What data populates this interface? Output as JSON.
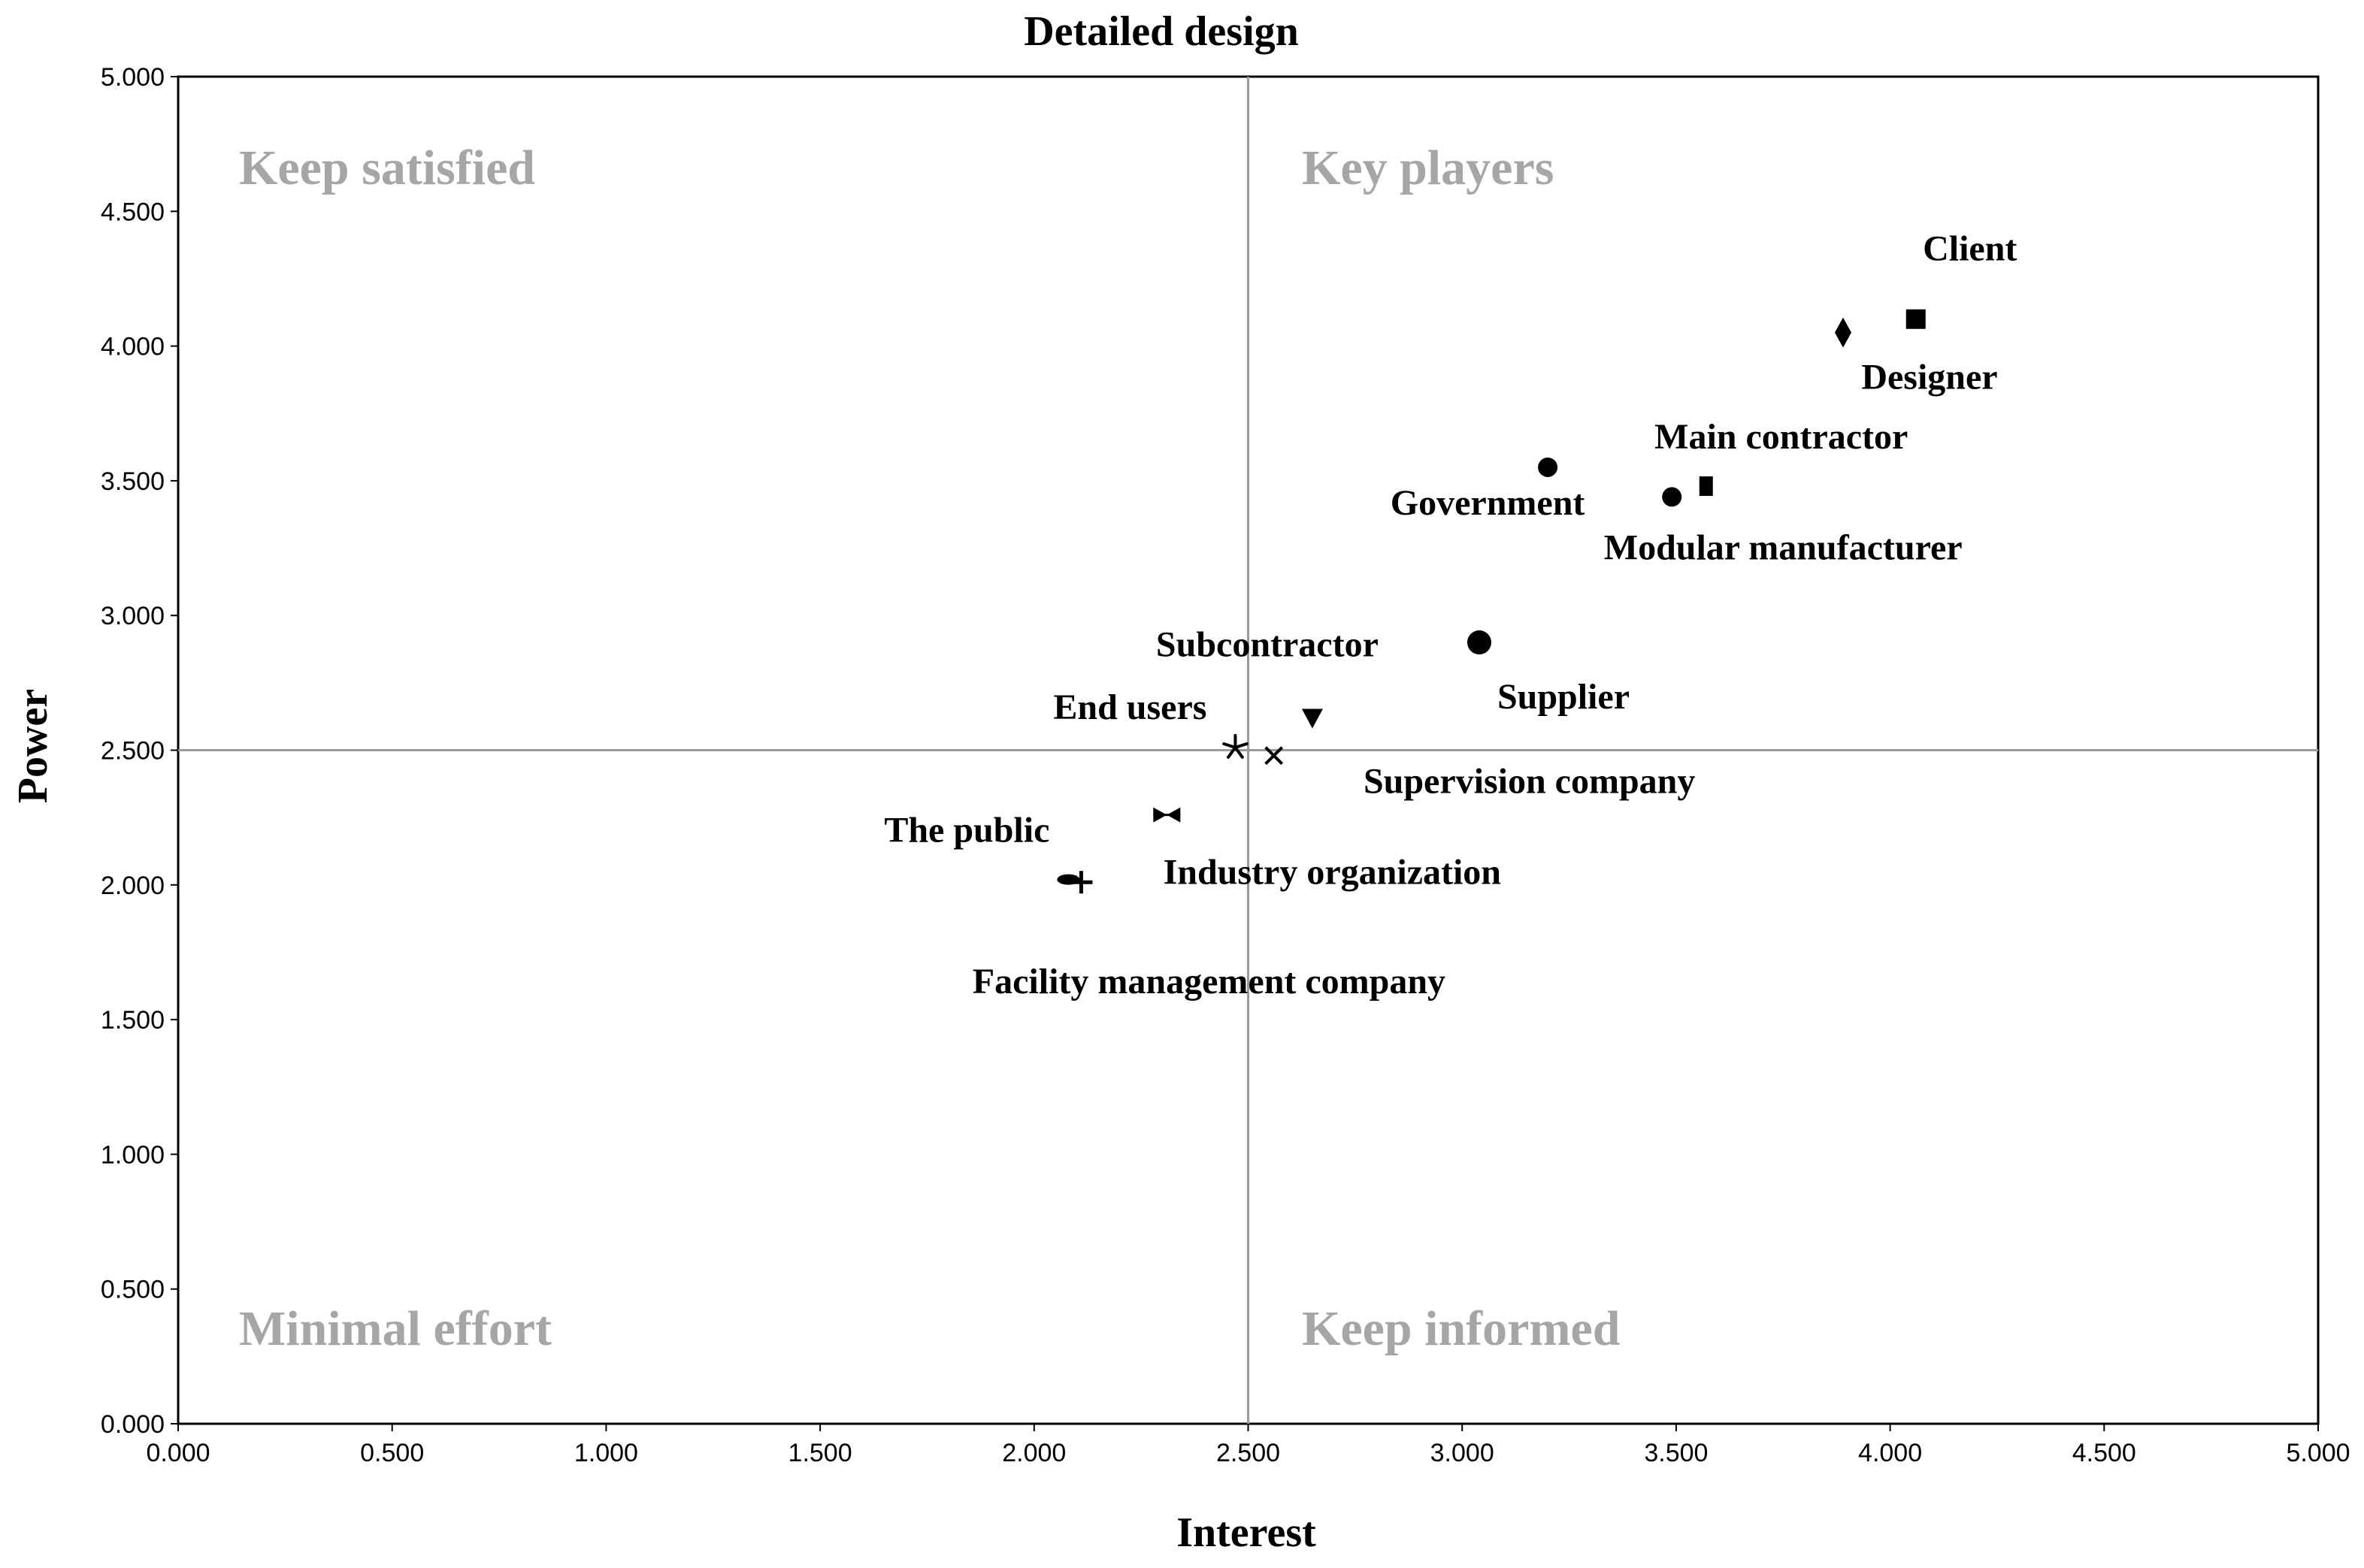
{
  "chart_data": {
    "type": "scatter",
    "title": "Detailed design",
    "xlabel": "Interest",
    "ylabel": "Power",
    "xlim": [
      0,
      5
    ],
    "ylim": [
      0,
      5
    ],
    "xticks": [
      "0.000",
      "0.500",
      "1.000",
      "1.500",
      "2.000",
      "2.500",
      "3.000",
      "3.500",
      "4.000",
      "4.500",
      "5.000"
    ],
    "yticks": [
      "0.000",
      "0.500",
      "1.000",
      "1.500",
      "2.000",
      "2.500",
      "3.000",
      "3.500",
      "4.000",
      "4.500",
      "5.000"
    ],
    "grid": false,
    "reference_lines": {
      "x": 2.5,
      "y": 2.5
    },
    "quadrants": [
      {
        "name": "top-left",
        "label": "Keep satisfied"
      },
      {
        "name": "top-right",
        "label": "Key players"
      },
      {
        "name": "bottom-left",
        "label": "Minimal effort"
      },
      {
        "name": "bottom-right",
        "label": "Keep informed"
      }
    ],
    "points": [
      {
        "name": "Client",
        "x": 4.06,
        "y": 4.1,
        "marker": "square"
      },
      {
        "name": "Designer",
        "x": 3.89,
        "y": 4.05,
        "marker": "diamond"
      },
      {
        "name": "Main contractor",
        "x": 3.57,
        "y": 3.48,
        "marker": "small-square"
      },
      {
        "name": "Government",
        "x": 3.2,
        "y": 3.55,
        "marker": "circle"
      },
      {
        "name": "Modular manufacturer",
        "x": 3.49,
        "y": 3.44,
        "marker": "circle"
      },
      {
        "name": "Supplier",
        "x": 3.04,
        "y": 2.9,
        "marker": "circle-large"
      },
      {
        "name": "Subcontractor",
        "x": 2.65,
        "y": 2.62,
        "marker": "triangle-down"
      },
      {
        "name": "End users",
        "x": 2.47,
        "y": 2.51,
        "marker": "asterisk"
      },
      {
        "name": "Supervision company",
        "x": 2.56,
        "y": 2.48,
        "marker": "x"
      },
      {
        "name": "Industry organization",
        "x": 2.31,
        "y": 2.26,
        "marker": "bowtie"
      },
      {
        "name": "The public",
        "x": 2.08,
        "y": 2.02,
        "marker": "dash-ellipse"
      },
      {
        "name": "Facility management company",
        "x": 2.11,
        "y": 2.01,
        "marker": "plus"
      }
    ]
  }
}
